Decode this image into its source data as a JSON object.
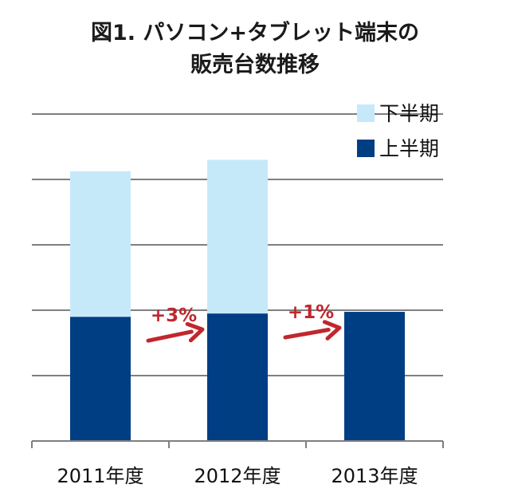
{
  "chart_data": {
    "type": "bar",
    "stacked": true,
    "title_lines": [
      "図1. パソコン+タブレット端末の",
      "販売台数推移"
    ],
    "categories": [
      "2011年度",
      "2012年度",
      "2013年度"
    ],
    "series": [
      {
        "name": "上半期",
        "values": [
          38,
          39,
          39.5
        ],
        "color": "#003e84"
      },
      {
        "name": "下半期",
        "values": [
          44.5,
          47,
          null
        ],
        "color": "#c6e9fa"
      }
    ],
    "ylim": [
      0,
      100
    ],
    "grid": true,
    "legend": {
      "placement": "top-right",
      "order": [
        "下半期",
        "上半期"
      ]
    },
    "annotations": [
      {
        "text": "+3%",
        "from": "2011年度",
        "to": "2012年度",
        "color": "#c0272d"
      },
      {
        "text": "+1%",
        "from": "2012年度",
        "to": "2013年度",
        "color": "#c0272d"
      }
    ]
  }
}
